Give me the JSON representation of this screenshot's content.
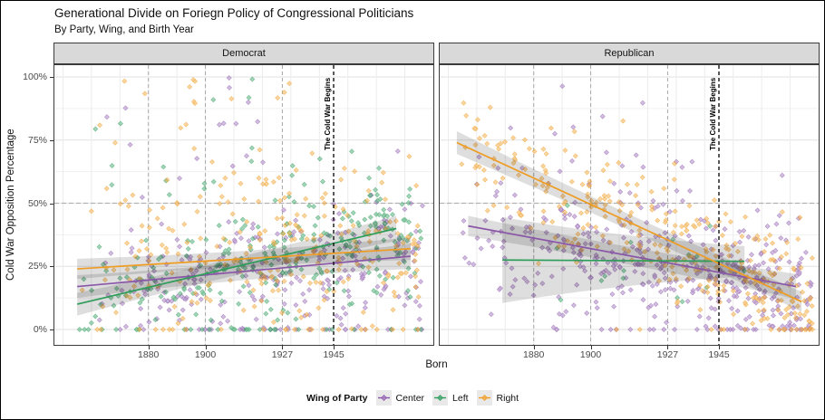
{
  "title": "Generational Divide on Foriegn Policy of Congressional Politicians",
  "subtitle": "By Party, Wing, and Birth Year",
  "annotation": {
    "label": "The Cold War Begins",
    "year": 1945
  },
  "legend": {
    "title": "Wing of Party",
    "items": [
      {
        "label": "Center",
        "wing": "Center"
      },
      {
        "label": "Left",
        "wing": "Left"
      },
      {
        "label": "Right",
        "wing": "Right"
      }
    ]
  },
  "chart_data": {
    "type": "scatter",
    "title": "Generational Divide on Foriegn Policy of Congressional Politicians",
    "subtitle": "By Party, Wing, and Birth Year",
    "xlabel": "Born",
    "ylabel": "Cold War Opposition Percentage",
    "xlim": [
      1847,
      1980
    ],
    "ylim": [
      0,
      100
    ],
    "x_ticks": [
      {
        "year": 1880,
        "label": "1880"
      },
      {
        "year": 1900,
        "label": "1900"
      },
      {
        "year": 1927,
        "label": "1927"
      },
      {
        "year": 1945,
        "label": "1945"
      }
    ],
    "y_ticks": [
      {
        "pct": 0,
        "label": "0%"
      },
      {
        "pct": 25,
        "label": "25%"
      },
      {
        "pct": 50,
        "label": "50%"
      },
      {
        "pct": 75,
        "label": "75%"
      },
      {
        "pct": 100,
        "label": "100%"
      }
    ],
    "grid": {
      "v_years": [
        1850,
        1860,
        1870,
        1880,
        1890,
        1900,
        1910,
        1920,
        1930,
        1940,
        1950,
        1960,
        1970
      ],
      "h_pct": [
        0,
        12.5,
        25,
        37.5,
        50,
        62.5,
        75,
        87.5,
        100
      ],
      "major_pct": [
        0,
        25,
        50,
        75,
        100
      ]
    },
    "guides": {
      "dashed_years": [
        1880,
        1900,
        1927
      ],
      "dashed_pct": 50,
      "event_year": 1945
    },
    "wings": {
      "Center": {
        "point": "#A47CC0",
        "line": "#8A56A8"
      },
      "Left": {
        "point": "#47A974",
        "line": "#2D9D59"
      },
      "Right": {
        "point": "#F3AB44",
        "line": "#EE9C23"
      }
    },
    "band_color": "#000000",
    "band_opacity": 0.13,
    "facets": [
      {
        "label": "Democrat",
        "series": [
          {
            "wing": "Center",
            "trend": {
              "x": [
                1855,
                1972
              ],
              "y": [
                17,
                29
              ]
            },
            "band_pct": [
              4.5,
              2.2,
              5
            ],
            "scatter": {
              "seed": 101,
              "n": 290,
              "x_min": 1857,
              "x_max": 1977,
              "sd": 13,
              "zero_frac": 0.07,
              "high_frac": 0.05,
              "high_range": [
                45,
                100
              ]
            }
          },
          {
            "wing": "Left",
            "trend": {
              "x": [
                1855,
                1967
              ],
              "y": [
                10,
                40
              ]
            },
            "band_pct": [
              4.5,
              2.2,
              5
            ],
            "scatter": {
              "seed": 102,
              "n": 300,
              "x_min": 1855,
              "x_max": 1976,
              "sd": 12,
              "zero_frac": 0.08,
              "high_frac": 0.04,
              "high_range": [
                50,
                100
              ]
            }
          },
          {
            "wing": "Right",
            "trend": {
              "x": [
                1855,
                1972
              ],
              "y": [
                24,
                32
              ]
            },
            "band_pct": [
              4,
              2,
              4.5
            ],
            "scatter": {
              "seed": 103,
              "n": 280,
              "x_min": 1855,
              "x_max": 1975,
              "sd": 15,
              "zero_frac": 0.05,
              "high_frac": 0.08,
              "high_range": [
                45,
                100
              ]
            }
          }
        ]
      },
      {
        "label": "Republican",
        "series": [
          {
            "wing": "Center",
            "trend": {
              "x": [
                1857,
                1972
              ],
              "y": [
                41,
                17
              ]
            },
            "band_pct": [
              4,
              2.5,
              5
            ],
            "scatter": {
              "seed": 201,
              "n": 430,
              "x_min": 1855,
              "x_max": 1978,
              "sd": 13,
              "zero_frac": 0.03,
              "high_frac": 0.04,
              "high_range": [
                55,
                100
              ]
            }
          },
          {
            "wing": "Left",
            "trend": {
              "x": [
                1869,
                1954
              ],
              "y": [
                27.5,
                27
              ]
            },
            "band_pct": [
              17,
              9,
              6
            ],
            "scatter": {
              "seed": 202,
              "n": 16,
              "x_min": 1869,
              "x_max": 1955,
              "sd": 9,
              "zero_frac": 0.06,
              "high_frac": 0,
              "high_range": [
                0,
                0
              ]
            }
          },
          {
            "wing": "Right",
            "trend": {
              "x": [
                1853,
                1974
              ],
              "y": [
                74,
                11
              ]
            },
            "band_pct": [
              4.5,
              2,
              4
            ],
            "scatter": {
              "seed": 203,
              "n": 330,
              "x_min": 1852,
              "x_max": 1978,
              "sd": 12,
              "zero_frac": 0.02,
              "high_frac": 0.02,
              "high_range": [
                60,
                100
              ]
            }
          }
        ]
      }
    ]
  }
}
